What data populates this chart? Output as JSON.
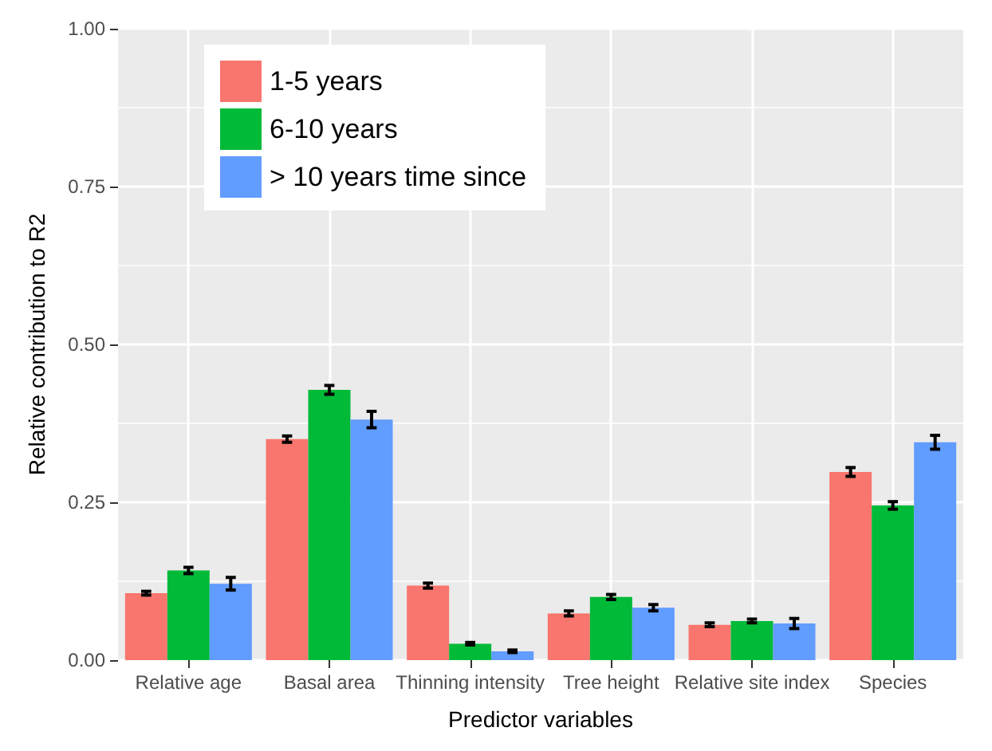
{
  "chart_data": {
    "type": "bar",
    "xlabel": "Predictor variables",
    "ylabel": "Relative contribution to R2",
    "categories": [
      "Relative age",
      "Basal area",
      "Thinning intensity",
      "Tree height",
      "Relative site index",
      "Species"
    ],
    "series": [
      {
        "name": "1-5 years",
        "color": "#f8766d",
        "values": [
          0.106,
          0.35,
          0.118,
          0.074,
          0.056,
          0.298
        ],
        "errors": [
          0.003,
          0.005,
          0.004,
          0.004,
          0.003,
          0.007
        ]
      },
      {
        "name": "6-10 years",
        "color": "#00ba38",
        "values": [
          0.142,
          0.428,
          0.026,
          0.1,
          0.062,
          0.245
        ],
        "errors": [
          0.005,
          0.007,
          0.002,
          0.004,
          0.003,
          0.006
        ]
      },
      {
        "name": "> 10 years time since",
        "color": "#619cff",
        "values": [
          0.121,
          0.381,
          0.014,
          0.083,
          0.058,
          0.345
        ],
        "errors": [
          0.01,
          0.013,
          0.002,
          0.005,
          0.008,
          0.011
        ]
      }
    ],
    "ylim": [
      0,
      1
    ],
    "yticks": [
      {
        "value": 0,
        "label": "0.00"
      },
      {
        "value": 0.25,
        "label": "0.25"
      },
      {
        "value": 0.5,
        "label": "0.50"
      },
      {
        "value": 0.75,
        "label": "0.75"
      },
      {
        "value": 1,
        "label": "1.00"
      }
    ],
    "grid": true,
    "legend": "top left"
  }
}
